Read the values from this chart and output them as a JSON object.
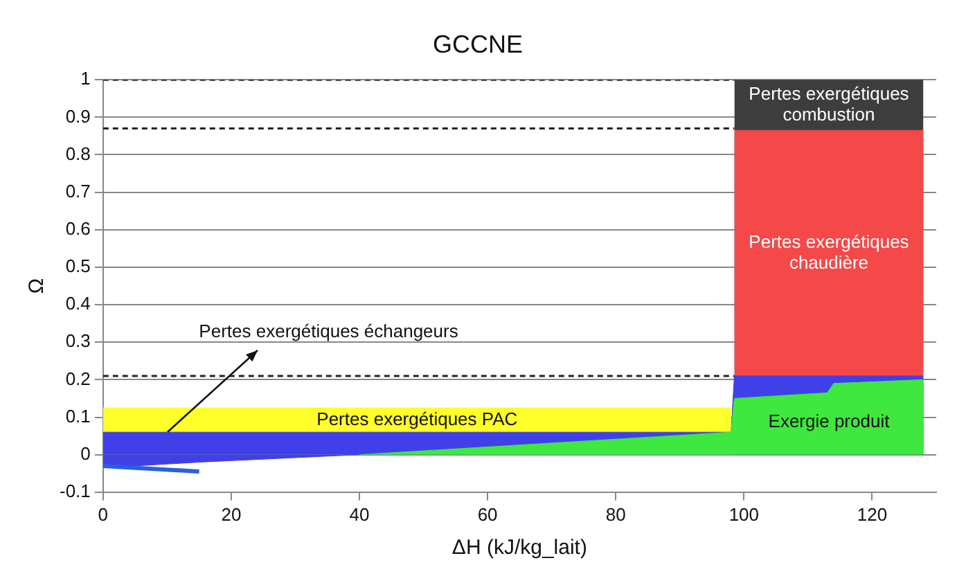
{
  "chart_data": {
    "type": "area",
    "title": "GCCNE",
    "xlabel": "ΔH (kJ/kg_lait)",
    "ylabel": "Ω",
    "xlim": [
      0,
      130
    ],
    "xticks": [
      0,
      20,
      40,
      60,
      80,
      100,
      120
    ],
    "ylim": [
      -0.1,
      1
    ],
    "yticks": [
      -0.1,
      0,
      0.1,
      0.2,
      0.3,
      0.4,
      0.5,
      0.6,
      0.7,
      0.8,
      0.9,
      1
    ],
    "grid": "y",
    "legend": false,
    "marker": "none",
    "series": [
      {
        "name": "Pertes exergétiques combustion",
        "color": "#3d3d3d",
        "x": [
          98.5,
          128
        ],
        "values": [
          1,
          1
        ]
      },
      {
        "name": "Pertes exergétiques chaudière",
        "color": "#f54848",
        "x": [
          98.5,
          128
        ],
        "values": [
          0.865,
          0.865
        ]
      },
      {
        "name": "Pertes exergétiques PAC",
        "color": "#ffff2a",
        "x": [
          0,
          98
        ],
        "values": [
          0.125,
          0.125
        ]
      },
      {
        "color": "#4040e8",
        "x": [
          0,
          98,
          98.5,
          128
        ],
        "values": [
          0.06,
          0.06,
          0.21,
          0.21
        ]
      },
      {
        "color": "#4040e8",
        "x": [
          0,
          15,
          40
        ],
        "values": [
          -0.035,
          -0.02,
          0
        ]
      },
      {
        "name": "Exergie produit",
        "color": "#3ee83e",
        "x": [
          40,
          98,
          98.5,
          113,
          114,
          128
        ],
        "values": [
          0,
          0.06,
          0.15,
          0.165,
          0.19,
          0.2
        ]
      },
      {
        "type": "line",
        "color": "#2860e0",
        "x": [
          0,
          15
        ],
        "values": [
          -0.03,
          -0.045
        ]
      },
      {
        "type": "line",
        "line_style": "dashed",
        "color": "#222222",
        "x": [
          0,
          98.5
        ],
        "values": [
          1,
          1
        ]
      },
      {
        "type": "line",
        "line_style": "dashed",
        "color": "#222222",
        "x": [
          0,
          98.5
        ],
        "values": [
          0.87,
          0.87
        ]
      },
      {
        "type": "line",
        "line_style": "dashed",
        "color": "#222222",
        "x": [
          0,
          98.5
        ],
        "values": [
          0.21,
          0.21
        ]
      }
    ],
    "annotations": [
      {
        "text": "Pertes exergétiques échangeurs",
        "x": 10,
        "y": 0.06
      }
    ]
  }
}
